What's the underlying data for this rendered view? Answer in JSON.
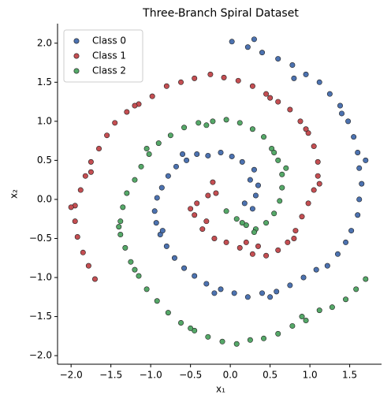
{
  "chart_data": {
    "type": "scatter",
    "title": "Three-Branch Spiral Dataset",
    "x_label": "x₁",
    "y_label": "x₂",
    "xlim": [
      -2.17,
      1.9
    ],
    "ylim": [
      -2.11,
      2.25
    ],
    "xticks": [
      {
        "value": -2,
        "label": "−2.0"
      },
      {
        "value": -1.5,
        "label": "−1.5"
      },
      {
        "value": -1,
        "label": "−1.0"
      },
      {
        "value": -0.5,
        "label": "−0.5"
      },
      {
        "value": 0,
        "label": "0.0"
      },
      0.5,
      {
        "value": 1,
        "label": "1.0"
      },
      1.5
    ],
    "yticks": [
      {
        "value": -2,
        "label": "−2.0"
      },
      {
        "value": -1.5,
        "label": "−1.5"
      },
      {
        "value": -1,
        "label": "−1.0"
      },
      {
        "value": -0.5,
        "label": "−0.5"
      },
      {
        "value": 0,
        "label": "0.0"
      },
      0.5,
      {
        "value": 1,
        "label": "1.0"
      },
      1.5,
      {
        "value": 2,
        "label": "2.0"
      }
    ],
    "legend": "upper left",
    "series": [
      {
        "name": "Class 0",
        "color": "#4c72b0",
        "x": [
          0.28,
          0.32,
          0.25,
          0.3,
          0.15,
          0.02,
          -0.12,
          -0.28,
          -0.42,
          -0.55,
          -0.68,
          -0.78,
          -0.86,
          -0.92,
          -0.95,
          -0.93,
          -0.88,
          -0.8,
          -0.7,
          -0.58,
          -0.45,
          -0.3,
          -0.12,
          0.05,
          0.22,
          0.4,
          0.58,
          0.75,
          0.92,
          1.08,
          1.22,
          1.35,
          1.45,
          1.52,
          1.6,
          1.62,
          1.65,
          1.62,
          1.6,
          1.55,
          1.48,
          1.38,
          1.25,
          1.12,
          0.95,
          0.78,
          0.6,
          0.4,
          0.22,
          0.02,
          0.3,
          0.18,
          0.35,
          -0.6,
          -0.2,
          1.7,
          1.4,
          0.5,
          -0.85,
          0.8
        ],
        "y": [
          -0.12,
          0.05,
          0.25,
          0.38,
          0.48,
          0.55,
          0.6,
          0.56,
          0.58,
          0.5,
          0.42,
          0.3,
          0.15,
          0.02,
          -0.15,
          -0.3,
          -0.45,
          -0.6,
          -0.75,
          -0.88,
          -0.98,
          -1.08,
          -1.15,
          -1.2,
          -1.25,
          -1.2,
          -1.18,
          -1.1,
          -1.0,
          -0.9,
          -0.85,
          -0.7,
          -0.55,
          -0.4,
          -0.2,
          0.0,
          0.2,
          0.4,
          0.6,
          0.8,
          1.0,
          1.2,
          1.35,
          1.5,
          1.6,
          1.72,
          1.8,
          1.88,
          1.95,
          2.02,
          2.05,
          -0.05,
          0.18,
          0.58,
          -1.2,
          0.5,
          1.1,
          -1.25,
          -0.4,
          1.55
        ]
      },
      {
        "name": "Class 1",
        "color": "#c44e52",
        "x": [
          -0.22,
          -0.28,
          -0.42,
          -0.45,
          -0.35,
          -0.2,
          -0.05,
          0.12,
          0.28,
          0.45,
          0.6,
          0.72,
          0.82,
          0.9,
          0.98,
          1.05,
          1.1,
          1.1,
          1.05,
          0.98,
          0.88,
          0.75,
          0.6,
          0.45,
          0.28,
          0.1,
          -0.08,
          -0.25,
          -0.45,
          -0.62,
          -0.8,
          -0.98,
          -1.15,
          -1.3,
          -1.45,
          -1.55,
          -1.65,
          -1.75,
          -1.82,
          -1.88,
          -1.95,
          -1.95,
          -1.92,
          -1.85,
          -1.78,
          -1.7,
          -0.18,
          -0.5,
          0.35,
          0.8,
          1.12,
          0.5,
          -1.2,
          -2.0,
          -1.75,
          0.2,
          -0.3,
          0.95
        ],
        "y": [
          0.22,
          0.05,
          -0.05,
          -0.2,
          -0.38,
          -0.5,
          -0.55,
          -0.62,
          -0.7,
          -0.72,
          -0.65,
          -0.55,
          -0.4,
          -0.22,
          -0.05,
          0.12,
          0.3,
          0.48,
          0.68,
          0.85,
          1.0,
          1.15,
          1.25,
          1.35,
          1.45,
          1.52,
          1.56,
          1.6,
          1.55,
          1.5,
          1.45,
          1.32,
          1.22,
          1.12,
          0.98,
          0.82,
          0.65,
          0.48,
          0.3,
          0.12,
          -0.08,
          -0.28,
          -0.48,
          -0.68,
          -0.85,
          -1.02,
          0.08,
          -0.12,
          -0.6,
          -0.5,
          0.2,
          1.3,
          1.2,
          -0.1,
          0.35,
          -0.55,
          -0.28,
          0.9
        ]
      },
      {
        "name": "Class 2",
        "color": "#55a868",
        "x": [
          -0.05,
          0.08,
          0.2,
          0.32,
          0.45,
          0.55,
          0.62,
          0.65,
          0.65,
          0.6,
          0.52,
          0.42,
          0.28,
          0.12,
          -0.05,
          -0.22,
          -0.4,
          -0.58,
          -0.75,
          -0.9,
          -1.02,
          -1.12,
          -1.2,
          -1.3,
          -1.35,
          -1.38,
          -1.38,
          -1.32,
          -1.25,
          -1.15,
          -1.05,
          -0.92,
          -0.78,
          -0.62,
          -0.45,
          -0.28,
          -0.1,
          0.08,
          0.25,
          0.42,
          0.6,
          0.78,
          0.95,
          1.12,
          1.28,
          1.45,
          1.58,
          1.7,
          0.3,
          0.7,
          -0.3,
          -1.05,
          -1.4,
          -0.5,
          0.9,
          0.15,
          0.55,
          -1.2
        ],
        "y": [
          -0.15,
          -0.25,
          -0.33,
          -0.38,
          -0.3,
          -0.18,
          -0.02,
          0.15,
          0.32,
          0.5,
          0.65,
          0.8,
          0.9,
          0.98,
          1.02,
          1.0,
          0.98,
          0.92,
          0.82,
          0.72,
          0.58,
          0.42,
          0.25,
          0.08,
          -0.1,
          -0.28,
          -0.45,
          -0.62,
          -0.8,
          -0.98,
          -1.15,
          -1.3,
          -1.45,
          -1.58,
          -1.68,
          -1.76,
          -1.82,
          -1.85,
          -1.8,
          -1.78,
          -1.72,
          -1.62,
          -1.55,
          -1.42,
          -1.38,
          -1.28,
          -1.15,
          -1.02,
          -0.42,
          0.4,
          0.95,
          0.65,
          -0.35,
          -1.65,
          -1.5,
          -0.3,
          0.6,
          -0.9
        ]
      }
    ]
  }
}
